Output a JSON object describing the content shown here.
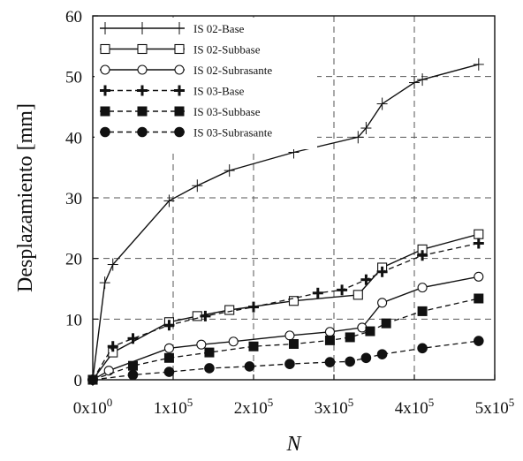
{
  "chart_data": {
    "type": "line",
    "title": "",
    "xlabel": "N",
    "ylabel": "Desplazamiento [mm]",
    "xlim": [
      0,
      500000
    ],
    "ylim": [
      0,
      60
    ],
    "x_ticks": [
      {
        "value": 0,
        "label": "0x10",
        "exp": "0"
      },
      {
        "value": 100000,
        "label": "1x10",
        "exp": "5"
      },
      {
        "value": 200000,
        "label": "2x10",
        "exp": "5"
      },
      {
        "value": 300000,
        "label": "3x10",
        "exp": "5"
      },
      {
        "value": 400000,
        "label": "4x10",
        "exp": "5"
      },
      {
        "value": 500000,
        "label": "5x10",
        "exp": "5"
      }
    ],
    "y_ticks": [
      {
        "value": 0,
        "label": "0"
      },
      {
        "value": 10,
        "label": "10"
      },
      {
        "value": 20,
        "label": "20"
      },
      {
        "value": 30,
        "label": "30"
      },
      {
        "value": 40,
        "label": "40"
      },
      {
        "value": 50,
        "label": "50"
      },
      {
        "value": 60,
        "label": "60"
      }
    ],
    "grid": true,
    "legend_position": "top-left",
    "series": [
      {
        "name": "IS 02-Base",
        "marker": "plus-thin",
        "dash": false,
        "color": "#111111",
        "points": [
          [
            0,
            0
          ],
          [
            15000,
            16
          ],
          [
            25000,
            19
          ],
          [
            95000,
            29.5
          ],
          [
            130000,
            32
          ],
          [
            170000,
            34.5
          ],
          [
            250000,
            37.5
          ],
          [
            330000,
            40
          ],
          [
            340000,
            41.5
          ],
          [
            360000,
            45.5
          ],
          [
            400000,
            49
          ],
          [
            410000,
            49.5
          ],
          [
            480000,
            52
          ]
        ]
      },
      {
        "name": "IS 02-Subbase",
        "marker": "square-open",
        "dash": false,
        "color": "#111111",
        "points": [
          [
            0,
            0
          ],
          [
            25000,
            4.5
          ],
          [
            95000,
            9.5
          ],
          [
            130000,
            10.5
          ],
          [
            170000,
            11.5
          ],
          [
            250000,
            13
          ],
          [
            330000,
            14
          ],
          [
            360000,
            18.5
          ],
          [
            410000,
            21.5
          ],
          [
            480000,
            24
          ]
        ]
      },
      {
        "name": "IS 02-Subrasante",
        "marker": "circle-open",
        "dash": false,
        "color": "#111111",
        "points": [
          [
            0,
            0
          ],
          [
            20000,
            1.5
          ],
          [
            95000,
            5.2
          ],
          [
            135000,
            5.8
          ],
          [
            175000,
            6.3
          ],
          [
            245000,
            7.3
          ],
          [
            295000,
            7.9
          ],
          [
            335000,
            8.6
          ],
          [
            360000,
            12.7
          ],
          [
            410000,
            15.2
          ],
          [
            480000,
            17
          ]
        ]
      },
      {
        "name": "IS 03-Base",
        "marker": "plus-bold",
        "dash": true,
        "color": "#111111",
        "points": [
          [
            0,
            0
          ],
          [
            25000,
            5.5
          ],
          [
            50000,
            6.8
          ],
          [
            95000,
            9
          ],
          [
            140000,
            10.5
          ],
          [
            200000,
            12
          ],
          [
            280000,
            14.3
          ],
          [
            310000,
            14.8
          ],
          [
            340000,
            16.5
          ],
          [
            360000,
            17.8
          ],
          [
            410000,
            20.5
          ],
          [
            480000,
            22.5
          ]
        ]
      },
      {
        "name": "IS 03-Subbase",
        "marker": "square-filled",
        "dash": true,
        "color": "#111111",
        "points": [
          [
            0,
            0
          ],
          [
            50000,
            2.3
          ],
          [
            95000,
            3.6
          ],
          [
            145000,
            4.5
          ],
          [
            200000,
            5.5
          ],
          [
            250000,
            5.9
          ],
          [
            295000,
            6.5
          ],
          [
            320000,
            7
          ],
          [
            345000,
            8
          ],
          [
            365000,
            9.3
          ],
          [
            410000,
            11.3
          ],
          [
            480000,
            13.4
          ]
        ]
      },
      {
        "name": "IS 03-Subrasante",
        "marker": "circle-filled",
        "dash": true,
        "color": "#111111",
        "points": [
          [
            0,
            0
          ],
          [
            50000,
            0.8
          ],
          [
            95000,
            1.3
          ],
          [
            145000,
            1.9
          ],
          [
            195000,
            2.2
          ],
          [
            245000,
            2.6
          ],
          [
            295000,
            2.9
          ],
          [
            320000,
            3
          ],
          [
            340000,
            3.6
          ],
          [
            360000,
            4.2
          ],
          [
            410000,
            5.2
          ],
          [
            480000,
            6.4
          ]
        ]
      }
    ]
  }
}
